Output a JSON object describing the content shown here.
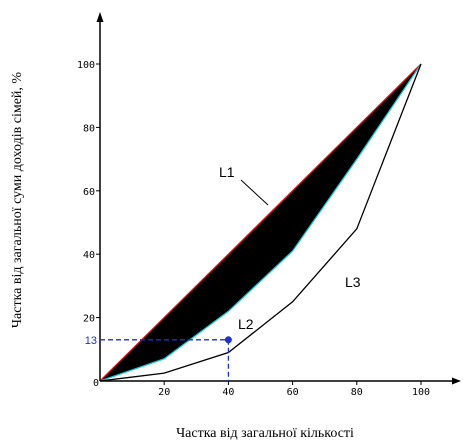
{
  "chart_data": {
    "type": "line",
    "xlabel": "Частка від загальної кількості",
    "ylabel": "Частка від загальної суми доходів сімей, %",
    "xlim": [
      0,
      100
    ],
    "ylim": [
      0,
      100
    ],
    "x_ticks": [
      {
        "value": 20,
        "label": "20"
      },
      {
        "value": 40,
        "label": "40"
      },
      {
        "value": 60,
        "label": "60"
      },
      {
        "value": 80,
        "label": "80"
      },
      {
        "value": 100,
        "label": "100"
      }
    ],
    "y_ticks": [
      {
        "value": 20,
        "label": "20"
      },
      {
        "value": 40,
        "label": "40"
      },
      {
        "value": 60,
        "label": "60"
      },
      {
        "value": 80,
        "label": "80"
      },
      {
        "value": 100,
        "label": "100"
      }
    ],
    "origin_label": "0",
    "grid": false,
    "series": [
      {
        "name": "L1",
        "color": "#e01010",
        "points": [
          [
            0,
            0
          ],
          [
            100,
            100
          ]
        ]
      },
      {
        "name": "L2",
        "color": "#19c3d6",
        "points": [
          [
            0,
            0
          ],
          [
            20,
            7
          ],
          [
            40,
            22
          ],
          [
            60,
            41
          ],
          [
            80,
            70
          ],
          [
            100,
            100
          ]
        ]
      },
      {
        "name": "L3",
        "color": "#000000",
        "points": [
          [
            0,
            0
          ],
          [
            20,
            2.5
          ],
          [
            40,
            9
          ],
          [
            60,
            25
          ],
          [
            80,
            48
          ],
          [
            100,
            100
          ]
        ]
      }
    ],
    "filled_region": {
      "between": [
        "L1",
        "L2"
      ],
      "color": "#000000"
    },
    "marker": {
      "x": 40,
      "y": 13,
      "label": "13",
      "color": "#1f2fd6"
    }
  }
}
